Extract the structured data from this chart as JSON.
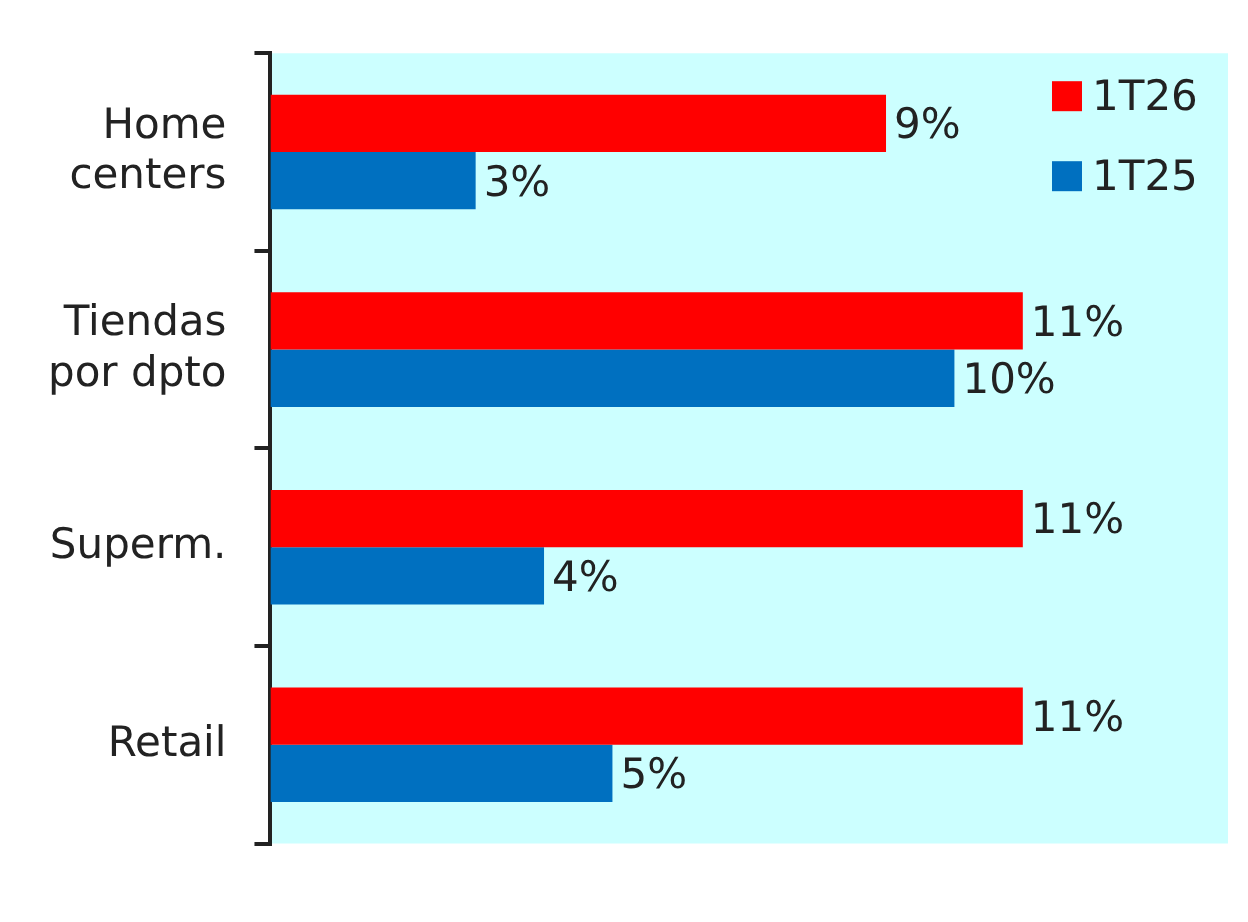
{
  "chart_data": {
    "type": "bar",
    "orientation": "horizontal",
    "categories": [
      "Home centers",
      "Tiendas por dpto",
      "Superm.",
      "Retail"
    ],
    "series": [
      {
        "name": "1T26",
        "color": "#ff0000",
        "values": [
          9,
          11,
          11,
          11
        ],
        "value_labels": [
          "9%",
          "11%",
          "11%",
          "11%"
        ]
      },
      {
        "name": "1T25",
        "color": "#0070c0",
        "values": [
          3,
          10,
          4,
          5
        ],
        "value_labels": [
          "3%",
          "10%",
          "4%",
          "5%"
        ]
      }
    ],
    "tick_labels": "y",
    "legend": "top right"
  }
}
